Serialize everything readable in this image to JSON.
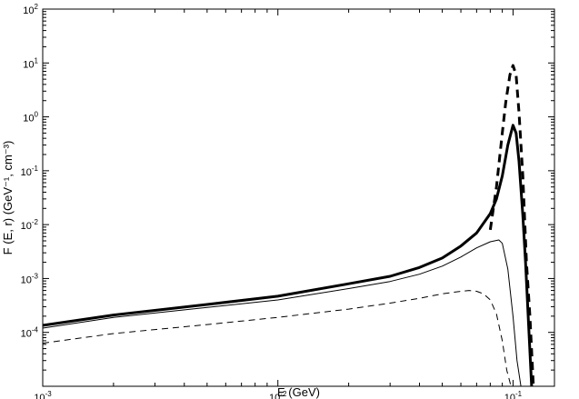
{
  "chart_data": {
    "type": "line",
    "title": "",
    "xlabel": "E (GeV)",
    "ylabel": "F (E, r) (GeV⁻¹, cm⁻³)",
    "x_scale": "log",
    "y_scale": "log",
    "xlim": [
      0.001,
      0.15
    ],
    "ylim": [
      1e-05,
      100
    ],
    "grid": false,
    "legend": "none",
    "x_ticks": [
      {
        "value": 0.001,
        "base": "10",
        "exp": "-3"
      },
      {
        "value": 0.01,
        "base": "10",
        "exp": "-2"
      },
      {
        "value": 0.1,
        "base": "10",
        "exp": "-1"
      }
    ],
    "y_ticks": [
      {
        "value": 0.0001,
        "base": "10",
        "exp": "-4"
      },
      {
        "value": 0.001,
        "base": "10",
        "exp": "-3"
      },
      {
        "value": 0.01,
        "base": "10",
        "exp": "-2"
      },
      {
        "value": 0.1,
        "base": "10",
        "exp": "-1"
      },
      {
        "value": 1,
        "base": "10",
        "exp": "0"
      },
      {
        "value": 10,
        "base": "10",
        "exp": "1"
      },
      {
        "value": 100,
        "base": "10",
        "exp": "2"
      }
    ],
    "series": [
      {
        "style": "thick-dashed",
        "x": [
          0.08,
          0.085,
          0.09,
          0.093,
          0.097,
          0.1,
          0.103,
          0.106,
          0.11,
          0.114,
          0.118,
          0.122
        ],
        "y": [
          0.008,
          0.05,
          0.5,
          1.8,
          6.0,
          9.0,
          6.0,
          1.2,
          0.08,
          0.002,
          0.0002,
          1e-05
        ]
      },
      {
        "style": "thick-solid",
        "x": [
          0.001,
          0.002,
          0.005,
          0.01,
          0.02,
          0.03,
          0.04,
          0.05,
          0.06,
          0.07,
          0.08,
          0.085,
          0.09,
          0.095,
          0.1,
          0.103,
          0.106,
          0.11,
          0.113,
          0.116,
          0.12
        ],
        "y": [
          0.000135,
          0.00021,
          0.00033,
          0.00047,
          0.0008,
          0.0011,
          0.0016,
          0.0024,
          0.004,
          0.007,
          0.016,
          0.03,
          0.08,
          0.3,
          0.7,
          0.5,
          0.15,
          0.015,
          0.002,
          0.0002,
          1e-05
        ]
      },
      {
        "style": "thin-solid",
        "x": [
          0.001,
          0.002,
          0.005,
          0.01,
          0.02,
          0.03,
          0.04,
          0.05,
          0.06,
          0.07,
          0.08,
          0.087,
          0.09,
          0.095,
          0.1,
          0.104,
          0.108
        ],
        "y": [
          0.00012,
          0.00019,
          0.00029,
          0.0004,
          0.00065,
          0.00088,
          0.0012,
          0.0017,
          0.0025,
          0.0037,
          0.0048,
          0.0052,
          0.0045,
          0.0015,
          0.0002,
          3e-05,
          1e-05
        ]
      },
      {
        "style": "thin-dashed",
        "x": [
          0.001,
          0.002,
          0.005,
          0.01,
          0.02,
          0.03,
          0.04,
          0.05,
          0.06,
          0.065,
          0.07,
          0.075,
          0.08,
          0.085,
          0.09,
          0.094,
          0.098
        ],
        "y": [
          6.3e-05,
          9.5e-05,
          0.00014,
          0.00019,
          0.00027,
          0.00035,
          0.00043,
          0.00052,
          0.00058,
          0.0006,
          0.00058,
          0.00052,
          0.0004,
          0.00022,
          7e-05,
          2e-05,
          1e-05
        ]
      }
    ]
  }
}
